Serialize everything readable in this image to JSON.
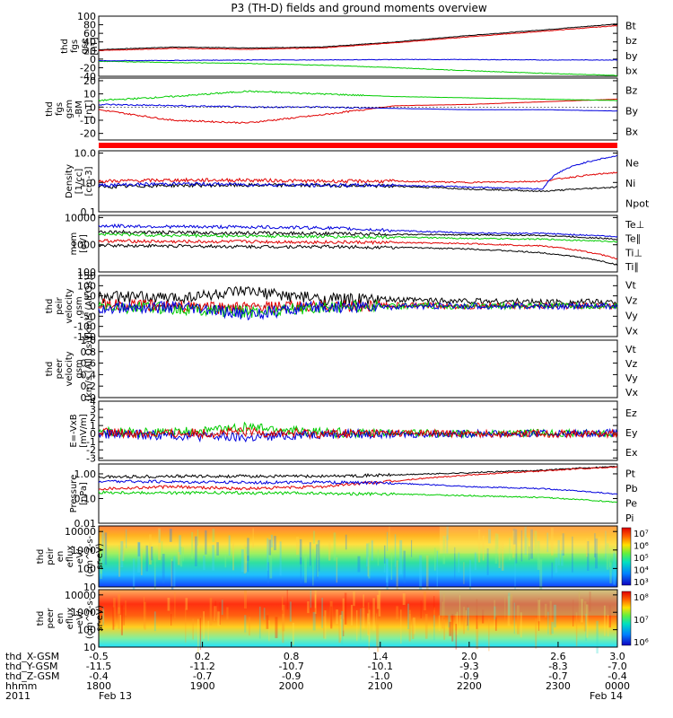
{
  "title": "P3 (TH-D) fields and ground moments overview",
  "colors": {
    "black": "#000000",
    "red": "#e00000",
    "green": "#00cc00",
    "blue": "#0000dd"
  },
  "chart_data": [
    {
      "type": "line",
      "panel": "fgs-gse",
      "ylabel_lines": [
        "thd",
        "fgs",
        "gse",
        "[nT]"
      ],
      "y_ticks": [
        "100",
        "80",
        "60",
        "40",
        "20",
        "0",
        "-20",
        "-40"
      ],
      "ylim": [
        -40,
        100
      ],
      "legend": [
        {
          "name": "Bt",
          "color": "#000000"
        },
        {
          "name": "bz",
          "color": "#e00000"
        },
        {
          "name": "by",
          "color": "#00cc00"
        },
        {
          "name": "bx",
          "color": "#0000dd"
        }
      ],
      "series": [
        {
          "name": "Bt",
          "color": "#000000",
          "x": [
            -0.5,
            0.0,
            0.5,
            1.0,
            1.5,
            2.0,
            2.5,
            3.0
          ],
          "values": [
            22,
            28,
            26,
            28,
            40,
            55,
            68,
            82
          ]
        },
        {
          "name": "bz",
          "color": "#e00000",
          "x": [
            -0.5,
            0.0,
            0.5,
            1.0,
            1.5,
            2.0,
            2.5,
            3.0
          ],
          "values": [
            20,
            25,
            23,
            26,
            38,
            52,
            65,
            78
          ]
        },
        {
          "name": "by",
          "color": "#00cc00",
          "x": [
            -0.5,
            0.0,
            0.5,
            1.0,
            1.5,
            2.0,
            2.5,
            3.0
          ],
          "values": [
            -5,
            -8,
            -10,
            -14,
            -20,
            -27,
            -33,
            -38
          ]
        },
        {
          "name": "bx",
          "color": "#0000dd",
          "x": [
            -0.5,
            0.0,
            0.5,
            1.0,
            1.5,
            2.0,
            2.5,
            3.0
          ],
          "values": [
            -4,
            -3,
            -2,
            -2,
            -1,
            -1,
            -2,
            -2
          ]
        }
      ]
    },
    {
      "type": "line",
      "panel": "fgs-gsm",
      "ylabel_lines": [
        "thd",
        "fgs",
        "gsm",
        "-BM",
        "[nT]"
      ],
      "y_ticks": [
        "20",
        "10",
        "0",
        "-10",
        "-20"
      ],
      "ylim": [
        -25,
        22
      ],
      "legend": [
        {
          "name": "Bz",
          "color": "#e00000"
        },
        {
          "name": "By",
          "color": "#00cc00"
        },
        {
          "name": "Bx",
          "color": "#0000dd"
        }
      ],
      "series": [
        {
          "name": "Bz",
          "color": "#e00000",
          "x": [
            -0.5,
            0.0,
            0.5,
            1.0,
            1.5,
            2.0,
            2.5,
            3.0
          ],
          "values": [
            -2,
            -10,
            -12,
            -6,
            1,
            2,
            4,
            6
          ]
        },
        {
          "name": "By",
          "color": "#00cc00",
          "x": [
            -0.5,
            0.0,
            0.5,
            1.0,
            1.5,
            2.0,
            2.5,
            3.0
          ],
          "values": [
            5,
            8,
            12,
            10,
            8,
            7,
            6,
            5
          ]
        },
        {
          "name": "Bx",
          "color": "#0000dd",
          "x": [
            -0.5,
            0.0,
            0.5,
            1.0,
            1.5,
            2.0,
            2.5,
            3.0
          ],
          "values": [
            2,
            1,
            0,
            0,
            -1,
            -2,
            -2,
            -3
          ]
        }
      ]
    },
    {
      "type": "line",
      "panel": "density",
      "ylabel_lines": [
        "Density",
        "[1/cc]",
        "[cm-3]"
      ],
      "y_ticks": [
        "10.0",
        "1.0",
        "0.1"
      ],
      "ylim": [
        0.1,
        12
      ],
      "log_scale": true,
      "legend": [
        {
          "name": "Ne",
          "color": "#e00000"
        },
        {
          "name": "Ni",
          "color": "#000000"
        },
        {
          "name": "Npot",
          "color": "#0000dd"
        }
      ],
      "series": [
        {
          "name": "Ne",
          "color": "#e00000",
          "x": [
            -0.5,
            0.0,
            0.5,
            1.0,
            1.5,
            2.0,
            2.5,
            3.0
          ],
          "values": [
            1.1,
            1.2,
            1.2,
            1.1,
            1.1,
            1.0,
            1.1,
            2.2
          ]
        },
        {
          "name": "Ni",
          "color": "#000000",
          "x": [
            -0.5,
            0.0,
            0.5,
            1.0,
            1.5,
            2.0,
            2.5,
            3.0
          ],
          "values": [
            0.7,
            0.8,
            0.8,
            0.8,
            0.75,
            0.6,
            0.5,
            0.7
          ]
        },
        {
          "name": "Npot",
          "color": "#0000dd",
          "x": [
            -0.5,
            0.0,
            0.5,
            1.0,
            1.5,
            2.0,
            2.5,
            3.0
          ],
          "values": [
            0.8,
            0.9,
            0.85,
            0.8,
            0.8,
            0.7,
            0.6,
            8.0
          ]
        }
      ]
    },
    {
      "type": "line",
      "panel": "temperature",
      "ylabel_lines": [
        "mom",
        "[eV]"
      ],
      "y_ticks": [
        "10000",
        "1000",
        "100"
      ],
      "ylim": [
        100,
        12000
      ],
      "log_scale": true,
      "legend": [
        {
          "name": "Te⊥",
          "color": "#e00000"
        },
        {
          "name": "Te∥",
          "color": "#000000"
        },
        {
          "name": "Ti⊥",
          "color": "#e00000"
        },
        {
          "name": "Ti∥",
          "color": "#00cc00"
        }
      ],
      "series": [
        {
          "name": "Ti∥ (blue)",
          "color": "#0000dd",
          "x": [
            -0.5,
            0.0,
            0.5,
            1.0,
            1.5,
            2.0,
            2.5,
            3.0
          ],
          "values": [
            5000,
            4600,
            4500,
            4200,
            3300,
            2700,
            2600,
            2000
          ]
        },
        {
          "name": "Te∥",
          "color": "#000000",
          "x": [
            -0.5,
            0.0,
            0.5,
            1.0,
            1.5,
            2.0,
            2.5,
            3.0
          ],
          "values": [
            3000,
            2800,
            2700,
            2600,
            2400,
            2300,
            2200,
            1600
          ]
        },
        {
          "name": "Ti∥",
          "color": "#00cc00",
          "x": [
            -0.5,
            0.0,
            0.5,
            1.0,
            1.5,
            2.0,
            2.5,
            3.0
          ],
          "values": [
            2500,
            2200,
            2100,
            2000,
            1900,
            1700,
            1600,
            1300
          ]
        },
        {
          "name": "Te⊥",
          "color": "#e00000",
          "x": [
            -0.5,
            0.0,
            0.5,
            1.0,
            1.5,
            2.0,
            2.5,
            3.0
          ],
          "values": [
            1400,
            1300,
            1300,
            1250,
            1200,
            1100,
            900,
            300
          ]
        },
        {
          "name": "Ti⊥",
          "color": "#000000",
          "x": [
            -0.5,
            0.0,
            0.5,
            1.0,
            1.5,
            2.0,
            2.5,
            3.0
          ],
          "values": [
            950,
            900,
            850,
            850,
            800,
            700,
            500,
            180
          ]
        }
      ]
    },
    {
      "type": "line",
      "panel": "peir-velocity",
      "ylabel_lines": [
        "thd",
        "peir",
        "velocity",
        "gsm",
        "[km/s (All Qs)]"
      ],
      "y_ticks": [
        "150",
        "100",
        "50",
        "0",
        "-50",
        "-100",
        "-150"
      ],
      "ylim": [
        -150,
        150
      ],
      "legend": [
        {
          "name": "Vt",
          "color": "#000000"
        },
        {
          "name": "Vz",
          "color": "#e00000"
        },
        {
          "name": "Vy",
          "color": "#00cc00"
        },
        {
          "name": "Vx",
          "color": "#0000dd"
        }
      ],
      "series": [
        {
          "name": "Vt",
          "color": "#000000",
          "x": [
            -0.5,
            0.0,
            0.5,
            1.0,
            1.5,
            2.0,
            2.5,
            3.0
          ],
          "values": [
            45,
            40,
            70,
            35,
            30,
            25,
            20,
            20
          ]
        },
        {
          "name": "Vz",
          "color": "#e00000",
          "x": [
            -0.5,
            0.0,
            0.5,
            1.0,
            1.5,
            2.0,
            2.5,
            3.0
          ],
          "values": [
            5,
            0,
            -10,
            0,
            3,
            0,
            2,
            0
          ]
        },
        {
          "name": "Vy",
          "color": "#00cc00",
          "x": [
            -0.5,
            0.0,
            0.5,
            1.0,
            1.5,
            2.0,
            2.5,
            3.0
          ],
          "values": [
            -5,
            -10,
            -30,
            -5,
            0,
            0,
            0,
            0
          ]
        },
        {
          "name": "Vx",
          "color": "#0000dd",
          "x": [
            -0.5,
            0.0,
            0.5,
            1.0,
            1.5,
            2.0,
            2.5,
            3.0
          ],
          "values": [
            -10,
            -5,
            -40,
            -5,
            -3,
            0,
            -2,
            0
          ]
        }
      ]
    },
    {
      "type": "line",
      "panel": "peer-velocity",
      "ylabel_lines": [
        "thd",
        "peer",
        "velocity",
        "gsm",
        "[km/s (All Qs)]"
      ],
      "y_ticks": [
        "1.0",
        "0.8",
        "0.6",
        "0.4",
        "0.2",
        "0.0"
      ],
      "ylim": [
        0,
        1
      ],
      "legend": [
        {
          "name": "Vt",
          "color": "#000000"
        },
        {
          "name": "Vz",
          "color": "#e00000"
        },
        {
          "name": "Vy",
          "color": "#00cc00"
        },
        {
          "name": "Vx",
          "color": "#0000dd"
        }
      ],
      "series": []
    },
    {
      "type": "line",
      "panel": "efield",
      "ylabel_lines": [
        "E=-VxB",
        "[mV/m]"
      ],
      "y_ticks": [
        "4",
        "3",
        "2",
        "1",
        "0",
        "-1",
        "-2",
        "-3"
      ],
      "ylim": [
        -3.3,
        4
      ],
      "legend": [
        {
          "name": "Ez",
          "color": "#e00000"
        },
        {
          "name": "Ey",
          "color": "#00cc00"
        },
        {
          "name": "Ex",
          "color": "#0000dd"
        }
      ],
      "series": [
        {
          "name": "Ey",
          "color": "#00cc00",
          "x": [
            -0.5,
            0.0,
            0.5,
            1.0,
            1.5,
            2.0,
            2.5,
            3.0
          ],
          "values": [
            0.2,
            0.1,
            0.8,
            0.1,
            0.1,
            0.0,
            0.1,
            0.0
          ]
        },
        {
          "name": "Ex",
          "color": "#0000dd",
          "x": [
            -0.5,
            0.0,
            0.5,
            1.0,
            1.5,
            2.0,
            2.5,
            3.0
          ],
          "values": [
            0.0,
            -0.2,
            -0.5,
            0.0,
            -0.1,
            0.0,
            0.0,
            0.1
          ]
        },
        {
          "name": "Ez",
          "color": "#e00000",
          "x": [
            -0.5,
            0.0,
            0.5,
            1.0,
            1.5,
            2.0,
            2.5,
            3.0
          ],
          "values": [
            0.1,
            0.0,
            0.2,
            0.0,
            0.1,
            0.0,
            0.0,
            0.0
          ]
        }
      ]
    },
    {
      "type": "line",
      "panel": "pressure",
      "ylabel_lines": [
        "Pressure",
        "[nPa]"
      ],
      "y_ticks": [
        "1.00",
        "0.10",
        "0.01"
      ],
      "ylim": [
        0.01,
        2.5
      ],
      "log_scale": true,
      "legend": [
        {
          "name": "Pt",
          "color": "#000000"
        },
        {
          "name": "Pb",
          "color": "#e00000"
        },
        {
          "name": "Pe",
          "color": "#00cc00"
        },
        {
          "name": "Pi",
          "color": "#0000dd"
        }
      ],
      "series": [
        {
          "name": "Pt",
          "color": "#000000",
          "x": [
            -0.5,
            0.0,
            0.5,
            1.0,
            1.5,
            2.0,
            2.5,
            3.0
          ],
          "values": [
            0.75,
            0.8,
            0.8,
            0.8,
            0.9,
            1.1,
            1.4,
            2.0
          ]
        },
        {
          "name": "Pb",
          "color": "#e00000",
          "x": [
            -0.5,
            0.0,
            0.5,
            1.0,
            1.5,
            2.0,
            2.5,
            3.0
          ],
          "values": [
            0.25,
            0.3,
            0.25,
            0.3,
            0.5,
            0.9,
            1.3,
            1.9
          ]
        },
        {
          "name": "Pe",
          "color": "#00cc00",
          "x": [
            -0.5,
            0.0,
            0.5,
            1.0,
            1.5,
            2.0,
            2.5,
            3.0
          ],
          "values": [
            0.18,
            0.17,
            0.17,
            0.16,
            0.15,
            0.13,
            0.11,
            0.07
          ]
        },
        {
          "name": "Pi",
          "color": "#0000dd",
          "x": [
            -0.5,
            0.0,
            0.5,
            1.0,
            1.5,
            2.0,
            2.5,
            3.0
          ],
          "values": [
            0.5,
            0.48,
            0.45,
            0.45,
            0.42,
            0.3,
            0.25,
            0.15
          ]
        }
      ]
    },
    {
      "type": "heatmap",
      "panel": "peir-spectrogram",
      "ylabel_lines": [
        "thd",
        "peir",
        "en",
        "eflux",
        "eV/",
        "(cm^2-s-",
        "sr-eV)"
      ],
      "y_ticks": [
        "10000",
        "1000",
        "100",
        "10"
      ],
      "ylim": [
        10,
        20000
      ],
      "log_scale": true,
      "colorbar_ticks": [
        "10⁷",
        "10⁶",
        "10⁵",
        "10⁴",
        "10³"
      ],
      "description_levels": "log10 energy flux 3 to 7"
    },
    {
      "type": "heatmap",
      "panel": "peer-spectrogram",
      "ylabel_lines": [
        "thd",
        "peer",
        "en",
        "eflux",
        "eV/",
        "(cm^2-s-",
        "sr-eV)"
      ],
      "y_ticks": [
        "10000",
        "1000",
        "100",
        "10"
      ],
      "ylim": [
        10,
        20000
      ],
      "log_scale": true,
      "colorbar_ticks": [
        "10⁸",
        "10⁷",
        "10⁶"
      ],
      "description_levels": "log10 energy flux 5.5 to 8"
    }
  ],
  "x_axis": {
    "row_labels": [
      "thd_X-GSM",
      "thd_Y-GSM",
      "thd_Z-GSM",
      "hhmm",
      "2011"
    ],
    "columns": [
      {
        "vals": [
          "-0.5",
          "-11.5",
          "-0.4",
          "1800",
          "Feb 13"
        ]
      },
      {
        "vals": [
          "0.2",
          "-11.2",
          "-0.7",
          "1900",
          ""
        ]
      },
      {
        "vals": [
          "0.8",
          "-10.7",
          "-0.9",
          "2000",
          ""
        ]
      },
      {
        "vals": [
          "1.4",
          "-10.1",
          "-1.0",
          "2100",
          ""
        ]
      },
      {
        "vals": [
          "2.0",
          "-9.3",
          "-0.9",
          "2200",
          ""
        ]
      },
      {
        "vals": [
          "2.6",
          "-8.3",
          "-0.7",
          "2300",
          ""
        ]
      },
      {
        "vals": [
          "3.0",
          "-7.0",
          "-0.4",
          "0000",
          "Feb 14"
        ]
      }
    ]
  }
}
